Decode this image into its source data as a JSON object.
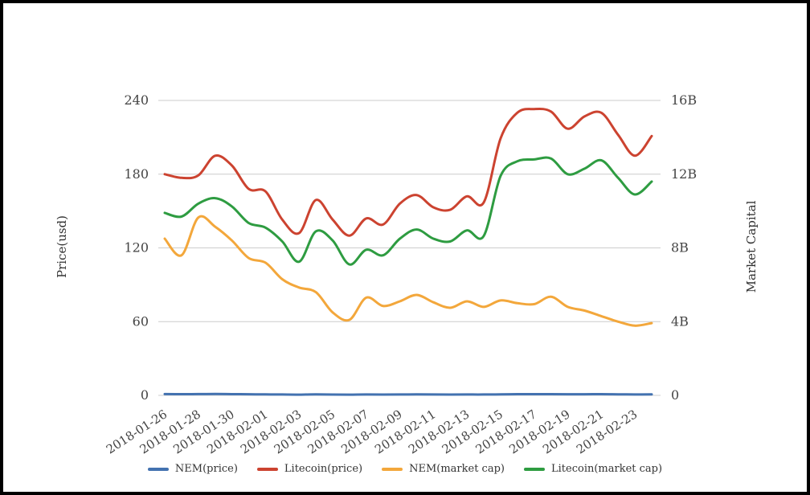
{
  "chart_data": {
    "type": "line",
    "smooth": true,
    "grid": true,
    "legend_position": "bottom",
    "x": [
      "2018-01-26",
      "2018-01-27",
      "2018-01-28",
      "2018-01-29",
      "2018-01-30",
      "2018-01-31",
      "2018-02-01",
      "2018-02-02",
      "2018-02-03",
      "2018-02-04",
      "2018-02-05",
      "2018-02-06",
      "2018-02-07",
      "2018-02-08",
      "2018-02-09",
      "2018-02-10",
      "2018-02-11",
      "2018-02-12",
      "2018-02-13",
      "2018-02-14",
      "2018-02-15",
      "2018-02-16",
      "2018-02-17",
      "2018-02-18",
      "2018-02-19",
      "2018-02-20",
      "2018-02-21",
      "2018-02-22",
      "2018-02-23",
      "2018-02-24"
    ],
    "x_tick_labels": [
      "2018-01-26",
      "2018-01-28",
      "2018-01-30",
      "2018-02-01",
      "2018-02-03",
      "2018-02-05",
      "2018-02-07",
      "2018-02-09",
      "2018-02-11",
      "2018-02-13",
      "2018-02-15",
      "2018-02-17",
      "2018-02-19",
      "2018-02-21",
      "2018-02-23"
    ],
    "x_tick_every": 2,
    "left_axis": {
      "label": "Price(usd)",
      "ticks": [
        "0",
        "60",
        "120",
        "180",
        "240"
      ],
      "min": 0,
      "max": 240
    },
    "right_axis": {
      "label": "Market Capital",
      "ticks": [
        "0",
        "4B",
        "8B",
        "12B",
        "16B"
      ],
      "min": 0,
      "max": 16,
      "unit": "billions USD"
    },
    "series": [
      {
        "name": "NEM(price)",
        "yaxis": "left",
        "color": "#4372b0",
        "values": [
          1.05,
          0.97,
          1.02,
          1.1,
          1.0,
          0.9,
          0.84,
          0.7,
          0.62,
          0.76,
          0.66,
          0.58,
          0.7,
          0.65,
          0.72,
          0.78,
          0.72,
          0.68,
          0.74,
          0.7,
          0.85,
          0.95,
          1.0,
          0.98,
          0.9,
          0.92,
          0.95,
          0.85,
          0.75,
          0.8
        ]
      },
      {
        "name": "Litecoin(price)",
        "yaxis": "left",
        "color": "#cc4330",
        "values": [
          180,
          177,
          179,
          195,
          187,
          168,
          166,
          143,
          132,
          159,
          143,
          130,
          144,
          139,
          156,
          163,
          153,
          151,
          162,
          157,
          209,
          230,
          233,
          231,
          217,
          227,
          230,
          212,
          195,
          211
        ]
      },
      {
        "name": "NEM(market cap)",
        "yaxis": "right",
        "color": "#f3a73b",
        "values": [
          8.5,
          7.6,
          9.65,
          9.15,
          8.4,
          7.45,
          7.2,
          6.3,
          5.85,
          5.6,
          4.5,
          4.1,
          5.3,
          4.85,
          5.1,
          5.45,
          5.05,
          4.75,
          5.1,
          4.8,
          5.15,
          5.0,
          4.95,
          5.35,
          4.8,
          4.6,
          4.3,
          4.0,
          3.78,
          3.92
        ]
      },
      {
        "name": "Litecoin(market cap)",
        "yaxis": "right",
        "color": "#2e9c41",
        "values": [
          9.9,
          9.7,
          10.4,
          10.7,
          10.25,
          9.35,
          9.1,
          8.35,
          7.25,
          8.9,
          8.4,
          7.1,
          7.9,
          7.6,
          8.5,
          9.0,
          8.5,
          8.35,
          8.95,
          8.65,
          11.9,
          12.7,
          12.8,
          12.85,
          12.0,
          12.3,
          12.75,
          11.8,
          10.9,
          11.6
        ]
      }
    ]
  },
  "style": {
    "grid_color": "#cccccc",
    "tick_color": "#444444",
    "label_color": "#333333"
  }
}
